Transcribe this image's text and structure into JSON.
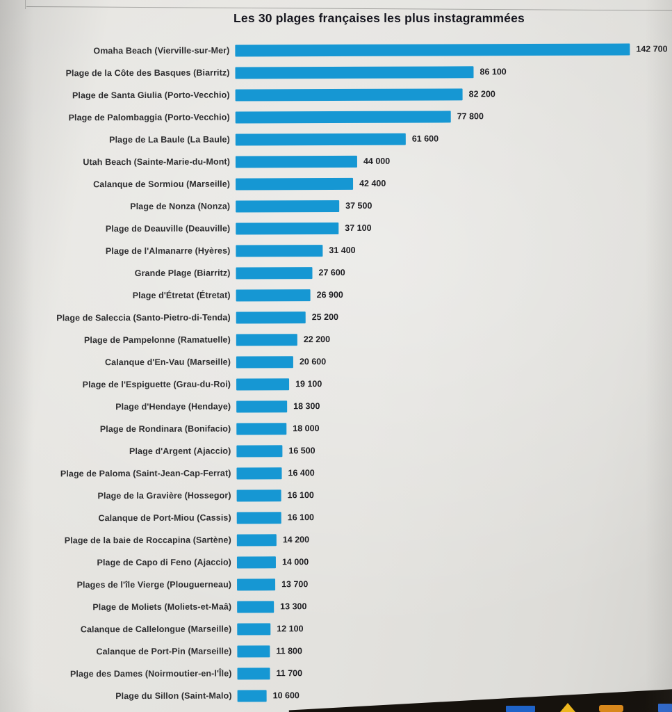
{
  "title": "Les 30 plages françaises les plus instagrammées",
  "chart_data": {
    "type": "bar",
    "orientation": "horizontal",
    "title": "Les 30 plages françaises les plus instagrammées",
    "bar_color": "#1697d3",
    "xlim": [
      0,
      142700
    ],
    "grid": false,
    "legend": "none",
    "value_label_position": "end-of-bar",
    "categories": [
      "Omaha Beach (Vierville-sur-Mer)",
      "Plage de la Côte des Basques (Biarritz)",
      "Plage de Santa Giulia (Porto-Vecchio)",
      "Plage de Palombaggia (Porto-Vecchio)",
      "Plage de La Baule (La Baule)",
      "Utah Beach (Sainte-Marie-du-Mont)",
      "Calanque de Sormiou (Marseille)",
      "Plage de Nonza (Nonza)",
      "Plage de Deauville (Deauville)",
      "Plage de l'Almanarre (Hyères)",
      "Grande Plage (Biarritz)",
      "Plage d'Étretat (Étretat)",
      "Plage de Saleccia (Santo-Pietro-di-Tenda)",
      "Plage de Pampelonne (Ramatuelle)",
      "Calanque d'En-Vau (Marseille)",
      "Plage de l'Espiguette (Grau-du-Roi)",
      "Plage d'Hendaye (Hendaye)",
      "Plage de Rondinara (Bonifacio)",
      "Plage d'Argent (Ajaccio)",
      "Plage de Paloma (Saint-Jean-Cap-Ferrat)",
      "Plage de la Gravière (Hossegor)",
      "Calanque de Port-Miou (Cassis)",
      "Plage de la baie de Roccapina (Sartène)",
      "Plage de Capo di Feno (Ajaccio)",
      "Plages de l'île Vierge (Plouguerneau)",
      "Plage de Moliets (Moliets-et-Maâ)",
      "Calanque de Callelongue (Marseille)",
      "Calanque de Port-Pin (Marseille)",
      "Plage des Dames (Noirmoutier-en-l'Île)",
      "Plage du Sillon (Saint-Malo)"
    ],
    "values": [
      142700,
      86100,
      82200,
      77800,
      61600,
      44000,
      42400,
      37500,
      37100,
      31400,
      27600,
      26900,
      25200,
      22200,
      20600,
      19100,
      18300,
      18000,
      16500,
      16400,
      16100,
      16100,
      14200,
      14000,
      13700,
      13300,
      12100,
      11800,
      11700,
      10600
    ],
    "value_labels": [
      "142 700",
      "86 100",
      "82 200",
      "77 800",
      "61 600",
      "44 000",
      "42 400",
      "37 500",
      "37 100",
      "31 400",
      "27 600",
      "26 900",
      "25 200",
      "22 200",
      "20 600",
      "19 100",
      "18 300",
      "18 000",
      "16 500",
      "16 400",
      "16 100",
      "16 100",
      "14 200",
      "14 000",
      "13 700",
      "13 300",
      "12 100",
      "11 800",
      "11 700",
      "10 600"
    ]
  },
  "taskbar": {
    "icons": [
      {
        "name": "blue-rect-app-icon",
        "color": "#1f63c8"
      },
      {
        "name": "yellow-triangle-app-icon",
        "color": "#edb71f"
      },
      {
        "name": "orange-rect-app-icon",
        "color": "#d9891c"
      },
      {
        "name": "blue-square-app-icon",
        "color": "#2e6bd4"
      }
    ]
  }
}
